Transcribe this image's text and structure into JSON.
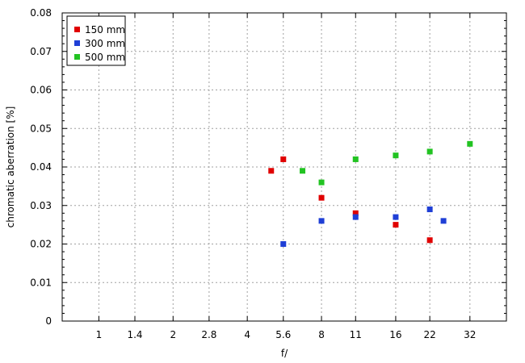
{
  "chart_data": {
    "type": "scatter",
    "title": "",
    "xlabel": "f/",
    "ylabel": "chromatic aberration [%]",
    "x_scale": "log2",
    "x_ticks": [
      {
        "value": 1,
        "label": "1"
      },
      {
        "value": 1.4,
        "label": "1.4"
      },
      {
        "value": 2,
        "label": "2"
      },
      {
        "value": 2.8,
        "label": "2.8"
      },
      {
        "value": 4,
        "label": "4"
      },
      {
        "value": 5.6,
        "label": "5.6"
      },
      {
        "value": 8,
        "label": "8"
      },
      {
        "value": 11,
        "label": "11"
      },
      {
        "value": 16,
        "label": "16"
      },
      {
        "value": 22,
        "label": "22"
      },
      {
        "value": 32,
        "label": "32"
      }
    ],
    "y_ticks": [
      {
        "value": 0,
        "label": "0"
      },
      {
        "value": 0.01,
        "label": "0.01"
      },
      {
        "value": 0.02,
        "label": "0.02"
      },
      {
        "value": 0.03,
        "label": "0.03"
      },
      {
        "value": 0.04,
        "label": "0.04"
      },
      {
        "value": 0.05,
        "label": "0.05"
      },
      {
        "value": 0.06,
        "label": "0.06"
      },
      {
        "value": 0.07,
        "label": "0.07"
      },
      {
        "value": 0.08,
        "label": "0.08"
      }
    ],
    "xlim": [
      0.71,
      45
    ],
    "ylim": [
      0,
      0.08
    ],
    "grid": true,
    "legend_position": "top-left",
    "series": [
      {
        "name": "150 mm",
        "color": "#e00000",
        "points": [
          [
            5.0,
            0.039
          ],
          [
            5.6,
            0.042
          ],
          [
            8,
            0.032
          ],
          [
            11,
            0.028
          ],
          [
            16,
            0.025
          ],
          [
            22,
            0.021
          ]
        ]
      },
      {
        "name": "300 mm",
        "color": "#1f3fd6",
        "points": [
          [
            5.6,
            0.02
          ],
          [
            8,
            0.026
          ],
          [
            11,
            0.027
          ],
          [
            16,
            0.027
          ],
          [
            22,
            0.029
          ],
          [
            25,
            0.026
          ]
        ]
      },
      {
        "name": "500 mm",
        "color": "#22c322",
        "points": [
          [
            6.7,
            0.039
          ],
          [
            8,
            0.036
          ],
          [
            11,
            0.042
          ],
          [
            16,
            0.043
          ],
          [
            22,
            0.044
          ],
          [
            32,
            0.046
          ]
        ]
      }
    ]
  }
}
